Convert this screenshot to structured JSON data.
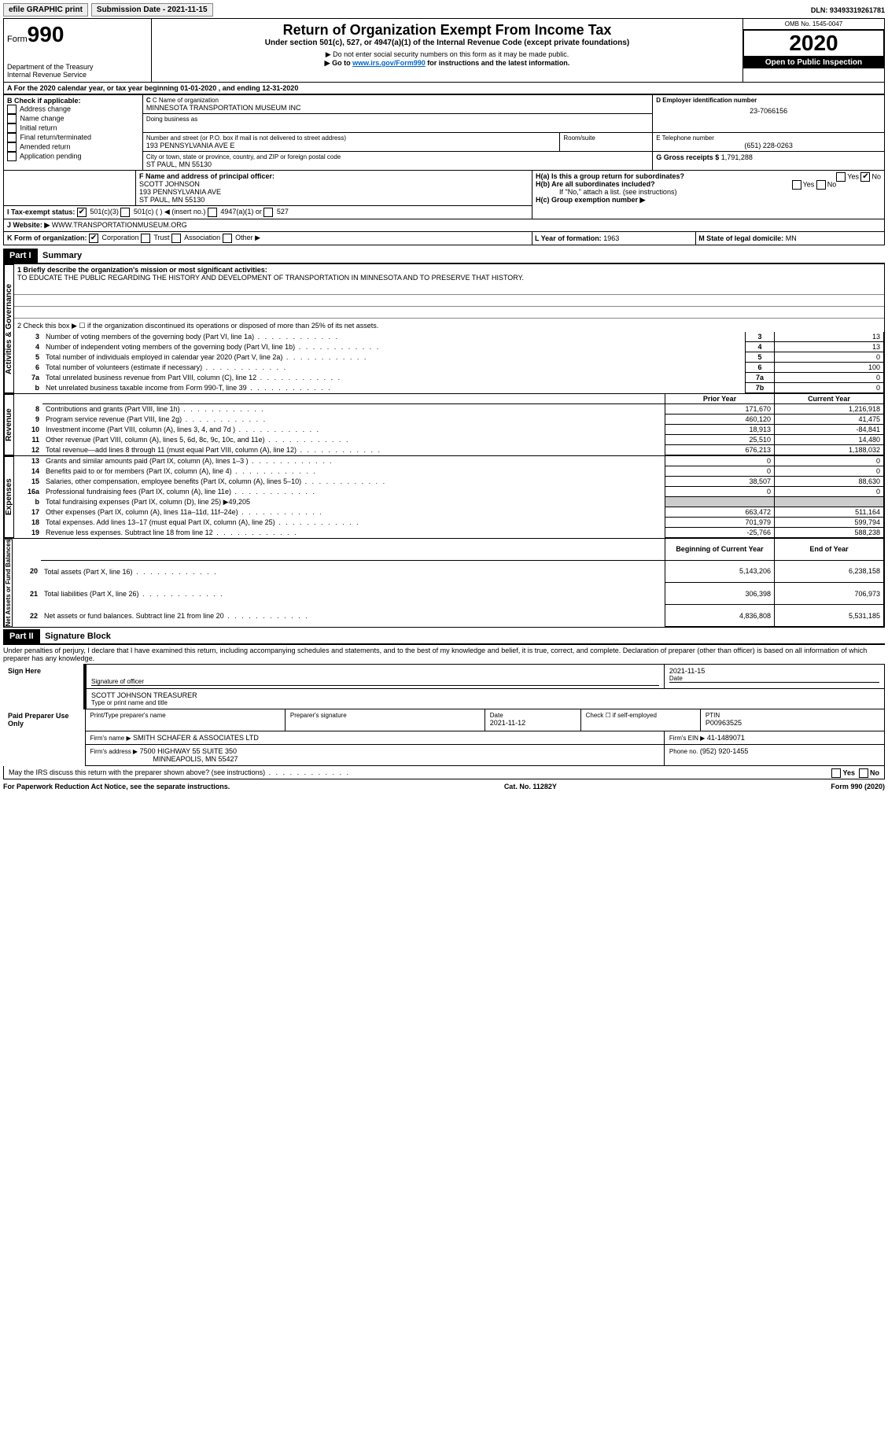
{
  "top": {
    "efile": "efile GRAPHIC print",
    "submission_label": "Submission Date - ",
    "submission_date": "2021-11-15",
    "dln_label": "DLN: ",
    "dln": "93493319261781"
  },
  "header": {
    "form_label": "Form",
    "form_number": "990",
    "dept": "Department of the Treasury",
    "irs": "Internal Revenue Service",
    "title": "Return of Organization Exempt From Income Tax",
    "subtitle": "Under section 501(c), 527, or 4947(a)(1) of the Internal Revenue Code (except private foundations)",
    "note1": "▶ Do not enter social security numbers on this form as it may be made public.",
    "note2_pre": "▶ Go to ",
    "note2_link": "www.irs.gov/Form990",
    "note2_post": " for instructions and the latest information.",
    "omb": "OMB No. 1545-0047",
    "year": "2020",
    "inspection": "Open to Public Inspection"
  },
  "rowA": "A For the 2020 calendar year, or tax year beginning 01-01-2020   , and ending 12-31-2020",
  "boxB": {
    "label": "B Check if applicable:",
    "items": [
      "Address change",
      "Name change",
      "Initial return",
      "Final return/terminated",
      "Amended return",
      "Application pending"
    ]
  },
  "boxC": {
    "name_label": "C Name of organization",
    "name": "MINNESOTA TRANSPORTATION MUSEUM INC",
    "dba_label": "Doing business as",
    "addr_label": "Number and street (or P.O. box if mail is not delivered to street address)",
    "room_label": "Room/suite",
    "addr": "193 PENNSYLVANIA AVE E",
    "city_label": "City or town, state or province, country, and ZIP or foreign postal code",
    "city": "ST PAUL, MN  55130"
  },
  "boxD": {
    "label": "D Employer identification number",
    "value": "23-7066156"
  },
  "boxE": {
    "label": "E Telephone number",
    "value": "(651) 228-0263"
  },
  "boxG": {
    "label": "G Gross receipts $",
    "value": "1,791,288"
  },
  "boxF": {
    "label": "F  Name and address of principal officer:",
    "name": "SCOTT JOHNSON",
    "addr1": "193 PENNSYLVANIA AVE",
    "addr2": "ST PAUL, MN  55130"
  },
  "boxH": {
    "a": "H(a)  Is this a group return for subordinates?",
    "b": "H(b)  Are all subordinates included?",
    "b_note": "If \"No,\" attach a list. (see instructions)",
    "c": "H(c)  Group exemption number ▶",
    "yes": "Yes",
    "no": "No"
  },
  "boxI": {
    "label": "I   Tax-exempt status:",
    "opts": [
      "501(c)(3)",
      "501(c) (  ) ◀ (insert no.)",
      "4947(a)(1) or",
      "527"
    ]
  },
  "boxJ": {
    "label": "J   Website: ▶",
    "value": "WWW.TRANSPORTATIONMUSEUM.ORG"
  },
  "boxK": {
    "label": "K Form of organization:",
    "opts": [
      "Corporation",
      "Trust",
      "Association",
      "Other ▶"
    ]
  },
  "boxL": {
    "label": "L Year of formation: ",
    "value": "1963"
  },
  "boxM": {
    "label": "M State of legal domicile: ",
    "value": "MN"
  },
  "part1": {
    "header": "Part I",
    "title": "Summary",
    "mission_label": "1  Briefly describe the organization's mission or most significant activities:",
    "mission": "TO EDUCATE THE PUBLIC REGARDING THE HISTORY AND DEVELOPMENT OF TRANSPORTATION IN MINNESOTA AND TO PRESERVE THAT HISTORY.",
    "line2": "2    Check this box ▶ ☐  if the organization discontinued its operations or disposed of more than 25% of its net assets.",
    "gov_lines": [
      {
        "n": "3",
        "label": "Number of voting members of the governing body (Part VI, line 1a)",
        "box": "3",
        "val": "13"
      },
      {
        "n": "4",
        "label": "Number of independent voting members of the governing body (Part VI, line 1b)",
        "box": "4",
        "val": "13"
      },
      {
        "n": "5",
        "label": "Total number of individuals employed in calendar year 2020 (Part V, line 2a)",
        "box": "5",
        "val": "0"
      },
      {
        "n": "6",
        "label": "Total number of volunteers (estimate if necessary)",
        "box": "6",
        "val": "100"
      },
      {
        "n": "7a",
        "label": "Total unrelated business revenue from Part VIII, column (C), line 12",
        "box": "7a",
        "val": "0"
      },
      {
        "n": "b",
        "label": "Net unrelated business taxable income from Form 990-T, line 39",
        "box": "7b",
        "val": "0"
      }
    ],
    "prior_year": "Prior Year",
    "current_year": "Current Year",
    "rev_lines": [
      {
        "n": "8",
        "label": "Contributions and grants (Part VIII, line 1h)",
        "py": "171,670",
        "cy": "1,216,918"
      },
      {
        "n": "9",
        "label": "Program service revenue (Part VIII, line 2g)",
        "py": "460,120",
        "cy": "41,475"
      },
      {
        "n": "10",
        "label": "Investment income (Part VIII, column (A), lines 3, 4, and 7d )",
        "py": "18,913",
        "cy": "-84,841"
      },
      {
        "n": "11",
        "label": "Other revenue (Part VIII, column (A), lines 5, 6d, 8c, 9c, 10c, and 11e)",
        "py": "25,510",
        "cy": "14,480"
      },
      {
        "n": "12",
        "label": "Total revenue—add lines 8 through 11 (must equal Part VIII, column (A), line 12)",
        "py": "676,213",
        "cy": "1,188,032"
      }
    ],
    "exp_lines": [
      {
        "n": "13",
        "label": "Grants and similar amounts paid (Part IX, column (A), lines 1–3 )",
        "py": "0",
        "cy": "0"
      },
      {
        "n": "14",
        "label": "Benefits paid to or for members (Part IX, column (A), line 4)",
        "py": "0",
        "cy": "0"
      },
      {
        "n": "15",
        "label": "Salaries, other compensation, employee benefits (Part IX, column (A), lines 5–10)",
        "py": "38,507",
        "cy": "88,630"
      },
      {
        "n": "16a",
        "label": "Professional fundraising fees (Part IX, column (A), line 11e)",
        "py": "0",
        "cy": "0"
      },
      {
        "n": "b",
        "label": "Total fundraising expenses (Part IX, column (D), line 25) ▶49,205",
        "py": "",
        "cy": "",
        "gray": true
      },
      {
        "n": "17",
        "label": "Other expenses (Part IX, column (A), lines 11a–11d, 11f–24e)",
        "py": "663,472",
        "cy": "511,164"
      },
      {
        "n": "18",
        "label": "Total expenses. Add lines 13–17 (must equal Part IX, column (A), line 25)",
        "py": "701,979",
        "cy": "599,794"
      },
      {
        "n": "19",
        "label": "Revenue less expenses. Subtract line 18 from line 12",
        "py": "-25,766",
        "cy": "588,238"
      }
    ],
    "boy": "Beginning of Current Year",
    "eoy": "End of Year",
    "na_lines": [
      {
        "n": "20",
        "label": "Total assets (Part X, line 16)",
        "py": "5,143,206",
        "cy": "6,238,158"
      },
      {
        "n": "21",
        "label": "Total liabilities (Part X, line 26)",
        "py": "306,398",
        "cy": "706,973"
      },
      {
        "n": "22",
        "label": "Net assets or fund balances. Subtract line 21 from line 20",
        "py": "4,836,808",
        "cy": "5,531,185"
      }
    ],
    "side_gov": "Activities & Governance",
    "side_rev": "Revenue",
    "side_exp": "Expenses",
    "side_na": "Net Assets or Fund Balances"
  },
  "part2": {
    "header": "Part II",
    "title": "Signature Block",
    "declaration": "Under penalties of perjury, I declare that I have examined this return, including accompanying schedules and statements, and to the best of my knowledge and belief, it is true, correct, and complete. Declaration of preparer (other than officer) is based on all information of which preparer has any knowledge.",
    "sign_here": "Sign Here",
    "sig_officer": "Signature of officer",
    "date": "Date",
    "sig_date": "2021-11-15",
    "officer_name": "SCOTT JOHNSON TREASURER",
    "type_name": "Type or print name and title",
    "paid": "Paid Preparer Use Only",
    "prep_name_label": "Print/Type preparer's name",
    "prep_sig_label": "Preparer's signature",
    "prep_date_label": "Date",
    "prep_date": "2021-11-12",
    "self_emp": "Check ☐ if self-employed",
    "ptin_label": "PTIN",
    "ptin": "P00963525",
    "firm_name_label": "Firm's name   ▶",
    "firm_name": "SMITH SCHAFER & ASSOCIATES LTD",
    "firm_ein_label": "Firm's EIN ▶",
    "firm_ein": "41-1489071",
    "firm_addr_label": "Firm's address ▶",
    "firm_addr1": "7500 HIGHWAY 55 SUITE 350",
    "firm_addr2": "MINNEAPOLIS, MN  55427",
    "phone_label": "Phone no.",
    "phone": "(952) 920-1455",
    "discuss": "May the IRS discuss this return with the preparer shown above? (see instructions)",
    "yes": "Yes",
    "no": "No"
  },
  "footer": {
    "pra": "For Paperwork Reduction Act Notice, see the separate instructions.",
    "cat": "Cat. No. 11282Y",
    "form": "Form 990 (2020)"
  }
}
